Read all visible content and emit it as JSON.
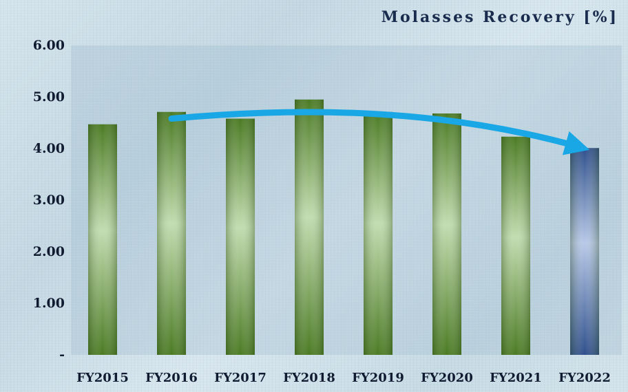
{
  "colors": {
    "bar_dark": "#4a7a22",
    "bar_light": "#c2ddb0",
    "highlight_dark": "#2f4f8c",
    "highlight_light": "#b7c9e8",
    "arrow": "#1aa7e6",
    "text": "#101a30",
    "title": "#1a2c4d"
  },
  "chart_data": {
    "type": "bar",
    "title": "Molasses Recovery [%]",
    "xlabel": "",
    "ylabel": "",
    "categories": [
      "FY2015",
      "FY2016",
      "FY2017",
      "FY2018",
      "FY2019",
      "FY2020",
      "FY2021",
      "FY2022"
    ],
    "values": [
      4.47,
      4.71,
      4.58,
      4.95,
      4.71,
      4.68,
      4.23,
      4.01
    ],
    "highlight_index": 7,
    "ylim": [
      0,
      6
    ],
    "yticks": [
      0,
      1,
      2,
      3,
      4,
      5,
      6
    ],
    "ytick_labels": [
      "-",
      "1.00",
      "2.00",
      "3.00",
      "4.00",
      "5.00",
      "6.00"
    ],
    "grid": false,
    "legend": "none",
    "annotations": [
      {
        "type": "trend-arrow",
        "from_category": "FY2016",
        "to_category": "FY2022",
        "path_values": [
          4.58,
          4.82,
          4.76,
          4.04
        ]
      }
    ]
  }
}
